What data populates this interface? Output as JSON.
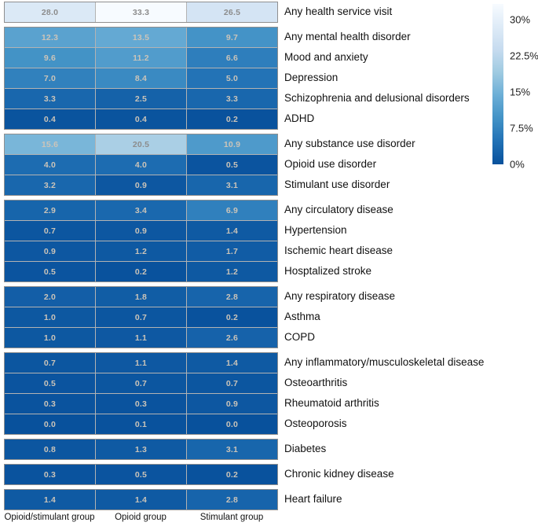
{
  "chart_data": {
    "type": "heatmap",
    "title": "",
    "unit": "%",
    "columns": [
      "Opioid/stimulant group",
      "Opioid group",
      "Stimulant group"
    ],
    "scale": {
      "min": 0,
      "max": 33.3,
      "colormap": "blues-reversed-dark-low-light-high",
      "colormap_span": 0.875,
      "legend_position": "right",
      "legend_ticks": [
        {
          "label": "30%",
          "value": 30
        },
        {
          "label": "22.5%",
          "value": 22.5
        },
        {
          "label": "15%",
          "value": 15
        },
        {
          "label": "7.5%",
          "value": 7.5
        },
        {
          "label": "0%",
          "value": 0
        }
      ]
    },
    "sections": [
      {
        "rows": [
          {
            "label": "Any health service visit",
            "values": [
              28.0,
              33.3,
              26.5
            ]
          }
        ]
      },
      {
        "rows": [
          {
            "label": "Any mental health disorder",
            "values": [
              12.3,
              13.5,
              9.7
            ]
          },
          {
            "label": "Mood and anxiety",
            "values": [
              9.6,
              11.2,
              6.6
            ]
          },
          {
            "label": "Depression",
            "values": [
              7.0,
              8.4,
              5.0
            ]
          },
          {
            "label": "Schizophrenia and delusional disorders",
            "values": [
              3.3,
              2.5,
              3.3
            ]
          },
          {
            "label": "ADHD",
            "values": [
              0.4,
              0.4,
              0.2
            ]
          }
        ]
      },
      {
        "rows": [
          {
            "label": "Any substance use disorder",
            "values": [
              15.6,
              20.5,
              10.9
            ]
          },
          {
            "label": "Opioid use disorder",
            "values": [
              4.0,
              4.0,
              0.5
            ]
          },
          {
            "label": "Stimulant use disorder",
            "values": [
              3.2,
              0.9,
              3.1
            ]
          }
        ]
      },
      {
        "rows": [
          {
            "label": "Any circulatory disease",
            "values": [
              2.9,
              3.4,
              6.9
            ]
          },
          {
            "label": "Hypertension",
            "values": [
              0.7,
              0.9,
              1.4
            ]
          },
          {
            "label": "Ischemic heart disease",
            "values": [
              0.9,
              1.2,
              1.7
            ]
          },
          {
            "label": "Hosptalized stroke",
            "values": [
              0.5,
              0.2,
              1.2
            ]
          }
        ]
      },
      {
        "rows": [
          {
            "label": "Any respiratory disease",
            "values": [
              2.0,
              1.8,
              2.8
            ]
          },
          {
            "label": "Asthma",
            "values": [
              1.0,
              0.7,
              0.2
            ]
          },
          {
            "label": "COPD",
            "values": [
              1.0,
              1.1,
              2.6
            ]
          }
        ]
      },
      {
        "rows": [
          {
            "label": "Any inflammatory/musculoskeletal disease",
            "values": [
              0.7,
              1.1,
              1.4
            ]
          },
          {
            "label": "Osteoarthritis",
            "values": [
              0.5,
              0.7,
              0.7
            ]
          },
          {
            "label": "Rheumatoid arthritis",
            "values": [
              0.3,
              0.3,
              0.9
            ]
          },
          {
            "label": "Osteoporosis",
            "values": [
              0.0,
              0.1,
              0.0
            ]
          }
        ]
      },
      {
        "rows": [
          {
            "label": "Diabetes",
            "values": [
              0.8,
              1.3,
              3.1
            ]
          }
        ]
      },
      {
        "rows": [
          {
            "label": "Chronic kidney disease",
            "values": [
              0.3,
              0.5,
              0.2
            ]
          }
        ]
      },
      {
        "rows": [
          {
            "label": "Heart failure",
            "values": [
              1.4,
              1.4,
              2.8
            ]
          }
        ]
      }
    ]
  },
  "colors": {
    "colormap_stops": [
      "#f7fbff",
      "#deebf7",
      "#c6dbef",
      "#9ecae1",
      "#6baed6",
      "#4292c6",
      "#2171b5",
      "#08519c",
      "#08306b"
    ],
    "section_border": "#8f8f8f",
    "cell_separator": "#b3b3b3",
    "annot_dark": "#8c8c8c",
    "annot_light": "#cbc4b9",
    "row_label_text": "#111111",
    "legend_text": "#222222",
    "background": "#ffffff"
  }
}
